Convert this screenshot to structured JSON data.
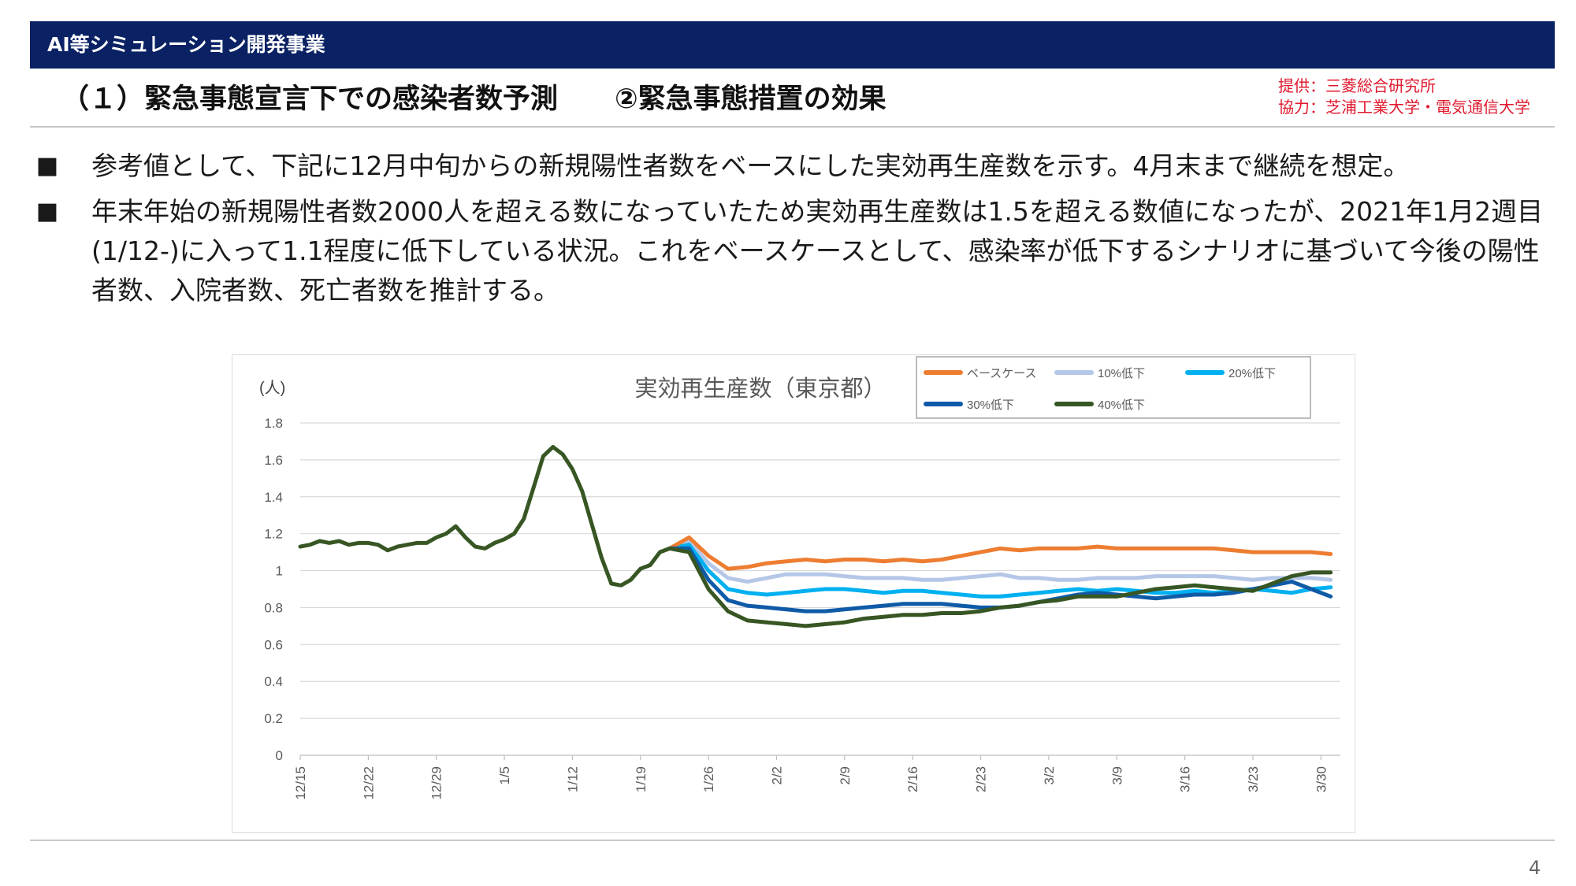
{
  "header": {
    "banner_title": "AI等シミュレーション開発事業",
    "subtitle_left": "（１）緊急事態宣言下での感染者数予測",
    "subtitle_right": "②緊急事態措置の効果",
    "credit_line1": "提供：三菱総合研究所",
    "credit_line2": "協力：芝浦工業大学・電気通信大学"
  },
  "bullets": [
    {
      "marker": "■",
      "text": "参考値として、下記に12月中旬からの新規陽性者数をベースにした実効再生産数を示す。4月末まで継続を想定。"
    },
    {
      "marker": "■",
      "text": "年末年始の新規陽性者数2000人を超える数になっていたため実効再生産数は1.5を超える数値になったが、2021年1月2週目(1/12-)に入って1.1程度に低下している状況。これをベースケースとして、感染率が低下するシナリオに基づいて今後の陽性者数、入院者数、死亡者数を推計する。"
    }
  ],
  "page_number": "4",
  "chart_data": {
    "type": "line",
    "title": "実効再生産数（東京都）",
    "ylabel": "(人)",
    "xlabel": "",
    "ylim": [
      0,
      1.8
    ],
    "yticks": [
      "0",
      "0.2",
      "0.4",
      "0.6",
      "0.8",
      "1",
      "1.2",
      "1.4",
      "1.6",
      "1.8"
    ],
    "x_start": "2020-12-15",
    "x_end": "2021-04-01",
    "xticks": [
      "12/15",
      "12/22",
      "12/29",
      "1/5",
      "1/12",
      "1/19",
      "1/26",
      "2/2",
      "2/9",
      "2/16",
      "2/23",
      "3/2",
      "3/9",
      "3/16",
      "3/23",
      "3/30"
    ],
    "grid": true,
    "legend_position": "top-right",
    "shared": {
      "x": [
        "2020-12-15",
        "2020-12-16",
        "2020-12-17",
        "2020-12-18",
        "2020-12-19",
        "2020-12-20",
        "2020-12-21",
        "2020-12-22",
        "2020-12-23",
        "2020-12-24",
        "2020-12-25",
        "2020-12-26",
        "2020-12-27",
        "2020-12-28",
        "2020-12-29",
        "2020-12-30",
        "2020-12-31",
        "2021-01-01",
        "2021-01-02",
        "2021-01-03",
        "2021-01-04",
        "2021-01-05",
        "2021-01-06",
        "2021-01-07",
        "2021-01-08",
        "2021-01-09",
        "2021-01-10",
        "2021-01-11",
        "2021-01-12",
        "2021-01-13",
        "2021-01-14",
        "2021-01-15",
        "2021-01-16",
        "2021-01-17",
        "2021-01-18",
        "2021-01-19",
        "2021-01-20",
        "2021-01-21",
        "2021-01-22"
      ],
      "values": [
        1.13,
        1.14,
        1.16,
        1.15,
        1.16,
        1.14,
        1.15,
        1.15,
        1.14,
        1.11,
        1.13,
        1.14,
        1.15,
        1.15,
        1.18,
        1.2,
        1.24,
        1.18,
        1.13,
        1.12,
        1.15,
        1.17,
        1.2,
        1.28,
        1.45,
        1.62,
        1.67,
        1.63,
        1.55,
        1.43,
        1.25,
        1.07,
        0.93,
        0.92,
        0.95,
        1.01,
        1.03,
        1.1,
        1.12
      ]
    },
    "series": [
      {
        "name": "ベースケース",
        "color": "#ed7d31",
        "x": [
          "2021-01-22",
          "2021-01-24",
          "2021-01-26",
          "2021-01-28",
          "2021-01-30",
          "2021-02-01",
          "2021-02-03",
          "2021-02-05",
          "2021-02-07",
          "2021-02-09",
          "2021-02-11",
          "2021-02-13",
          "2021-02-15",
          "2021-02-17",
          "2021-02-19",
          "2021-02-21",
          "2021-02-23",
          "2021-02-25",
          "2021-02-27",
          "2021-03-01",
          "2021-03-03",
          "2021-03-05",
          "2021-03-07",
          "2021-03-09",
          "2021-03-11",
          "2021-03-13",
          "2021-03-15",
          "2021-03-17",
          "2021-03-19",
          "2021-03-21",
          "2021-03-23",
          "2021-03-25",
          "2021-03-27",
          "2021-03-29",
          "2021-03-31"
        ],
        "values": [
          1.12,
          1.18,
          1.08,
          1.01,
          1.02,
          1.04,
          1.05,
          1.06,
          1.05,
          1.06,
          1.06,
          1.05,
          1.06,
          1.05,
          1.06,
          1.08,
          1.1,
          1.12,
          1.11,
          1.12,
          1.12,
          1.12,
          1.13,
          1.12,
          1.12,
          1.12,
          1.12,
          1.12,
          1.12,
          1.11,
          1.1,
          1.1,
          1.1,
          1.1,
          1.09
        ]
      },
      {
        "name": "10%低下",
        "color": "#b4c7e7",
        "x": [
          "2021-01-22",
          "2021-01-24",
          "2021-01-26",
          "2021-01-28",
          "2021-01-30",
          "2021-02-01",
          "2021-02-03",
          "2021-02-05",
          "2021-02-07",
          "2021-02-09",
          "2021-02-11",
          "2021-02-13",
          "2021-02-15",
          "2021-02-17",
          "2021-02-19",
          "2021-02-21",
          "2021-02-23",
          "2021-02-25",
          "2021-02-27",
          "2021-03-01",
          "2021-03-03",
          "2021-03-05",
          "2021-03-07",
          "2021-03-09",
          "2021-03-11",
          "2021-03-13",
          "2021-03-15",
          "2021-03-17",
          "2021-03-19",
          "2021-03-21",
          "2021-03-23",
          "2021-03-25",
          "2021-03-27",
          "2021-03-29",
          "2021-03-31"
        ],
        "values": [
          1.12,
          1.16,
          1.04,
          0.96,
          0.94,
          0.96,
          0.98,
          0.98,
          0.98,
          0.97,
          0.96,
          0.96,
          0.96,
          0.95,
          0.95,
          0.96,
          0.97,
          0.98,
          0.96,
          0.96,
          0.95,
          0.95,
          0.96,
          0.96,
          0.96,
          0.97,
          0.97,
          0.97,
          0.97,
          0.96,
          0.95,
          0.96,
          0.96,
          0.96,
          0.95
        ]
      },
      {
        "name": "20%低下",
        "color": "#00b0f0",
        "x": [
          "2021-01-22",
          "2021-01-24",
          "2021-01-26",
          "2021-01-28",
          "2021-01-30",
          "2021-02-01",
          "2021-02-03",
          "2021-02-05",
          "2021-02-07",
          "2021-02-09",
          "2021-02-11",
          "2021-02-13",
          "2021-02-15",
          "2021-02-17",
          "2021-02-19",
          "2021-02-21",
          "2021-02-23",
          "2021-02-25",
          "2021-02-27",
          "2021-03-01",
          "2021-03-03",
          "2021-03-05",
          "2021-03-07",
          "2021-03-09",
          "2021-03-11",
          "2021-03-13",
          "2021-03-15",
          "2021-03-17",
          "2021-03-19",
          "2021-03-21",
          "2021-03-23",
          "2021-03-25",
          "2021-03-27",
          "2021-03-29",
          "2021-03-31"
        ],
        "values": [
          1.12,
          1.14,
          1.0,
          0.9,
          0.88,
          0.87,
          0.88,
          0.89,
          0.9,
          0.9,
          0.89,
          0.88,
          0.89,
          0.89,
          0.88,
          0.87,
          0.86,
          0.86,
          0.87,
          0.88,
          0.89,
          0.9,
          0.89,
          0.9,
          0.89,
          0.88,
          0.88,
          0.89,
          0.88,
          0.89,
          0.9,
          0.89,
          0.88,
          0.9,
          0.91
        ]
      },
      {
        "name": "30%低下",
        "color": "#0f5ba7",
        "x": [
          "2021-01-22",
          "2021-01-24",
          "2021-01-26",
          "2021-01-28",
          "2021-01-30",
          "2021-02-01",
          "2021-02-03",
          "2021-02-05",
          "2021-02-07",
          "2021-02-09",
          "2021-02-11",
          "2021-02-13",
          "2021-02-15",
          "2021-02-17",
          "2021-02-19",
          "2021-02-21",
          "2021-02-23",
          "2021-02-25",
          "2021-02-27",
          "2021-03-01",
          "2021-03-03",
          "2021-03-05",
          "2021-03-07",
          "2021-03-09",
          "2021-03-11",
          "2021-03-13",
          "2021-03-15",
          "2021-03-17",
          "2021-03-19",
          "2021-03-21",
          "2021-03-23",
          "2021-03-25",
          "2021-03-27",
          "2021-03-29",
          "2021-03-31"
        ],
        "values": [
          1.12,
          1.12,
          0.95,
          0.84,
          0.81,
          0.8,
          0.79,
          0.78,
          0.78,
          0.79,
          0.8,
          0.81,
          0.82,
          0.82,
          0.82,
          0.81,
          0.8,
          0.8,
          0.81,
          0.83,
          0.85,
          0.87,
          0.88,
          0.87,
          0.86,
          0.85,
          0.86,
          0.87,
          0.87,
          0.88,
          0.9,
          0.92,
          0.94,
          0.9,
          0.86
        ]
      },
      {
        "name": "40%低下",
        "color": "#375623",
        "x": [
          "2021-01-22",
          "2021-01-24",
          "2021-01-26",
          "2021-01-28",
          "2021-01-30",
          "2021-02-01",
          "2021-02-03",
          "2021-02-05",
          "2021-02-07",
          "2021-02-09",
          "2021-02-11",
          "2021-02-13",
          "2021-02-15",
          "2021-02-17",
          "2021-02-19",
          "2021-02-21",
          "2021-02-23",
          "2021-02-25",
          "2021-02-27",
          "2021-03-01",
          "2021-03-03",
          "2021-03-05",
          "2021-03-07",
          "2021-03-09",
          "2021-03-11",
          "2021-03-13",
          "2021-03-15",
          "2021-03-17",
          "2021-03-19",
          "2021-03-21",
          "2021-03-23",
          "2021-03-25",
          "2021-03-27",
          "2021-03-29",
          "2021-03-31"
        ],
        "values": [
          1.12,
          1.1,
          0.9,
          0.78,
          0.73,
          0.72,
          0.71,
          0.7,
          0.71,
          0.72,
          0.74,
          0.75,
          0.76,
          0.76,
          0.77,
          0.77,
          0.78,
          0.8,
          0.81,
          0.83,
          0.84,
          0.86,
          0.86,
          0.86,
          0.88,
          0.9,
          0.91,
          0.92,
          0.91,
          0.9,
          0.89,
          0.93,
          0.97,
          0.99,
          0.99
        ]
      }
    ]
  }
}
